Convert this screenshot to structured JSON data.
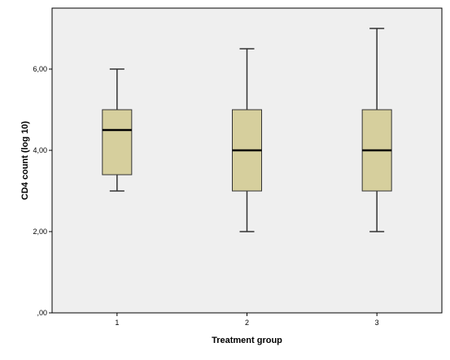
{
  "chart_data": {
    "type": "boxplot",
    "xlabel": "Treatment group",
    "ylabel": "CD4 count (log 10)",
    "categories": [
      "1",
      "2",
      "3"
    ],
    "boxes": [
      {
        "category": "1",
        "whisker_low": 3.0,
        "q1": 3.4,
        "median": 4.5,
        "q3": 5.0,
        "whisker_high": 6.0
      },
      {
        "category": "2",
        "whisker_low": 2.0,
        "q1": 3.0,
        "median": 4.0,
        "q3": 5.0,
        "whisker_high": 6.5
      },
      {
        "category": "3",
        "whisker_low": 2.0,
        "q1": 3.0,
        "median": 4.0,
        "q3": 5.0,
        "whisker_high": 7.0
      }
    ],
    "ylim": [
      0,
      7.5
    ],
    "y_ticks": [
      0,
      2,
      4,
      6
    ],
    "y_tick_labels": [
      ",00",
      "2,00",
      "4,00",
      "6,00"
    ],
    "grid": false,
    "colors": {
      "plot_background": "#efefef",
      "box_fill": "#d6cf9d",
      "box_stroke": "#333333",
      "median": "#000000",
      "whisker": "#333333"
    }
  }
}
